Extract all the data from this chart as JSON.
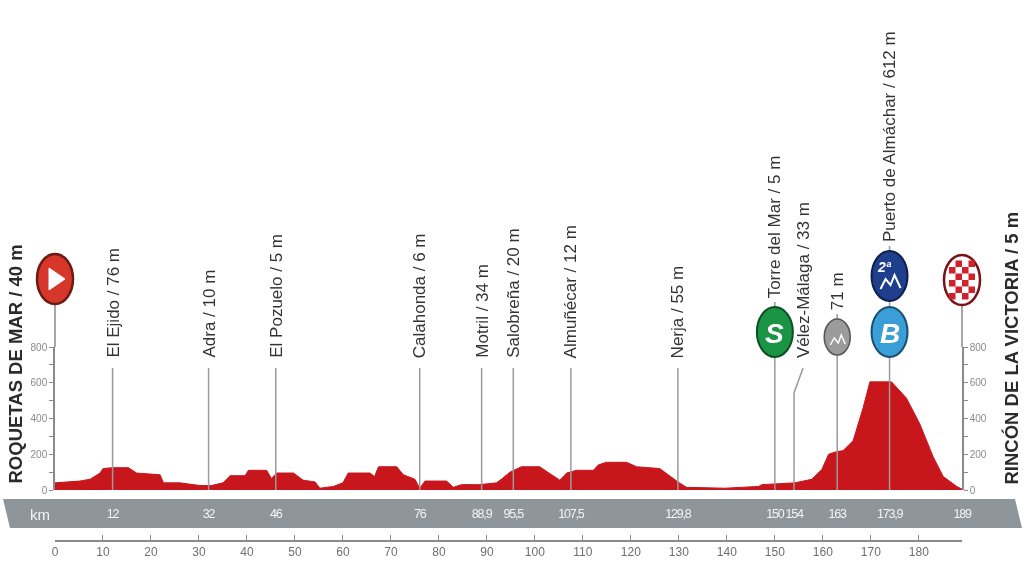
{
  "chart_data": {
    "type": "area",
    "ylabel": "ROQUETAS DE MAR / 40 m",
    "y2label": "RINCÓN DE LA VICTORIA / 5 m",
    "x2label": "km",
    "x": [
      0,
      5.2,
      7.3,
      9.4,
      10,
      12,
      15.3,
      17,
      21.9,
      22.6,
      26,
      30.2,
      32.6,
      35,
      36.5,
      39.6,
      40.3,
      44.1,
      45.1,
      46.2,
      49.7,
      51.7,
      54.2,
      55.2,
      58,
      60,
      61.1,
      65.6,
      66.6,
      67.4,
      71.2,
      72.6,
      75,
      76,
      77.1,
      81.6,
      83,
      84.7,
      88.5,
      92,
      93,
      94.8,
      97.2,
      101,
      103.5,
      105.2,
      106.6,
      108.7,
      112.2,
      113.2,
      114.9,
      119.1,
      121.2,
      126,
      127.8,
      129.8,
      131.6,
      139.6,
      146.6,
      147.3,
      154.2,
      157.7,
      159.8,
      161.2,
      162.9,
      164.2,
      166.3,
      168.4,
      169.8,
      174.3,
      177.4,
      180.2,
      183,
      185.1,
      187.9,
      189
    ],
    "values": [
      40,
      50,
      60,
      95,
      120,
      125,
      125,
      95,
      85,
      40,
      40,
      25,
      25,
      40,
      80,
      80,
      110,
      110,
      65,
      95,
      95,
      55,
      45,
      10,
      20,
      40,
      95,
      95,
      75,
      130,
      130,
      85,
      60,
      10,
      50,
      50,
      15,
      30,
      30,
      40,
      60,
      100,
      130,
      130,
      85,
      55,
      95,
      110,
      110,
      140,
      155,
      155,
      130,
      120,
      85,
      45,
      15,
      10,
      20,
      30,
      40,
      60,
      115,
      200,
      215,
      220,
      275,
      460,
      605,
      605,
      515,
      370,
      185,
      75,
      20,
      5
    ],
    "color": "#c8161d",
    "xlim": [
      0,
      189
    ],
    "xticks": [
      0,
      10,
      20,
      30,
      40,
      50,
      60,
      70,
      80,
      90,
      100,
      110,
      120,
      130,
      140,
      150,
      160,
      170,
      180
    ],
    "ylim": [
      0,
      800
    ],
    "yticks": [
      0,
      {
        "value": 100,
        "label": null
      },
      200,
      {
        "value": 300,
        "label": null
      },
      400,
      {
        "value": 500,
        "label": null
      },
      600,
      {
        "value": 700,
        "label": null
      },
      800
    ],
    "y2lim": [
      0,
      800
    ],
    "y2ticks": [
      0,
      {
        "value": 100,
        "label": null
      },
      200,
      {
        "value": 300,
        "label": null
      },
      400,
      {
        "value": 500,
        "label": null
      },
      600,
      {
        "value": 700,
        "label": null
      },
      800
    ],
    "x2lim": [
      0,
      189
    ],
    "x2ticks": [
      12,
      32,
      46,
      76,
      {
        "value": 88.9,
        "label": "88,9"
      },
      {
        "value": 95.5,
        "label": "95,5"
      },
      {
        "value": 107.5,
        "label": "107,5"
      },
      {
        "value": 129.8,
        "label": "129,8"
      },
      150,
      154,
      163,
      {
        "value": 173.9,
        "label": "173,9"
      },
      189
    ],
    "ref_lines": [
      {
        "axis": "x",
        "value": 12,
        "label": "El Ejido / 76 m"
      },
      {
        "axis": "x",
        "value": 32,
        "label": "Adra / 10 m"
      },
      {
        "axis": "x",
        "value": 46,
        "label": "El Pozuelo / 5 m"
      },
      {
        "axis": "x",
        "value": 76,
        "label": "Calahonda / 6 m"
      },
      {
        "axis": "x",
        "value": 88.9,
        "label": "Motril / 34 m"
      },
      {
        "axis": "x",
        "value": 95.5,
        "label": "Salobreña / 20 m"
      },
      {
        "axis": "x",
        "value": 107.5,
        "label": "Almuñécar / 12 m"
      },
      {
        "axis": "x",
        "value": 129.8,
        "label": "Nerja / 55 m"
      },
      {
        "axis": "x",
        "value": 150,
        "label": "Torre del Mar / 5 m"
      },
      {
        "axis": "x",
        "value": 154,
        "label": "Vélez-Málaga / 33 m"
      },
      {
        "axis": "x",
        "value": 163,
        "label": "71 m"
      },
      {
        "axis": "x",
        "value": 173.9,
        "label": "Puerto de Almáchar / 612 m"
      }
    ],
    "annotations": [
      "S",
      "2ª",
      "B"
    ]
  }
}
